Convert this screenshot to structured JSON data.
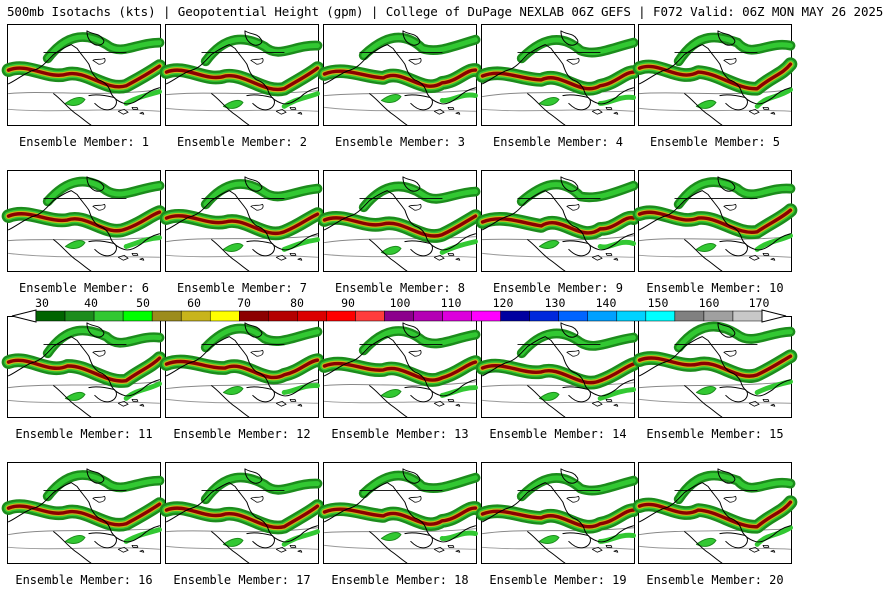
{
  "header": {
    "title": "500mb Isotachs (kts) | Geopotential Height (gpm) | College of DuPage NEXLAB  06Z GEFS | F072 Valid: 06Z MON MAY 26 2025"
  },
  "colorbar": {
    "ticks": [
      "30",
      "40",
      "50",
      "60",
      "70",
      "80",
      "90",
      "100",
      "110",
      "120",
      "130",
      "140",
      "150",
      "160",
      "170"
    ],
    "colors": [
      "#006400",
      "#1c8c1c",
      "#32c832",
      "#00ff00",
      "#9c8c1c",
      "#c8b41c",
      "#ffff00",
      "#8c0000",
      "#b40000",
      "#dc0000",
      "#ff0000",
      "#ff3c3c",
      "#8c008c",
      "#b400b4",
      "#dc00dc",
      "#ff00ff",
      "#0000a0",
      "#0028dc",
      "#0064ff",
      "#00a0ff",
      "#00d2ff",
      "#00ffff",
      "#808080",
      "#a0a0a0",
      "#c8c8c8"
    ]
  },
  "panels": [
    {
      "label": "Ensemble Member: 1"
    },
    {
      "label": "Ensemble Member: 2"
    },
    {
      "label": "Ensemble Member: 3"
    },
    {
      "label": "Ensemble Member: 4"
    },
    {
      "label": "Ensemble Member: 5"
    },
    {
      "label": "Ensemble Member: 6"
    },
    {
      "label": "Ensemble Member: 7"
    },
    {
      "label": "Ensemble Member: 8"
    },
    {
      "label": "Ensemble Member: 9"
    },
    {
      "label": "Ensemble Member: 10"
    },
    {
      "label": "Ensemble Member: 11"
    },
    {
      "label": "Ensemble Member: 12"
    },
    {
      "label": "Ensemble Member: 13"
    },
    {
      "label": "Ensemble Member: 14"
    },
    {
      "label": "Ensemble Member: 15"
    },
    {
      "label": "Ensemble Member: 16"
    },
    {
      "label": "Ensemble Member: 17"
    },
    {
      "label": "Ensemble Member: 18"
    },
    {
      "label": "Ensemble Member: 19"
    },
    {
      "label": "Ensemble Member: 20"
    }
  ]
}
